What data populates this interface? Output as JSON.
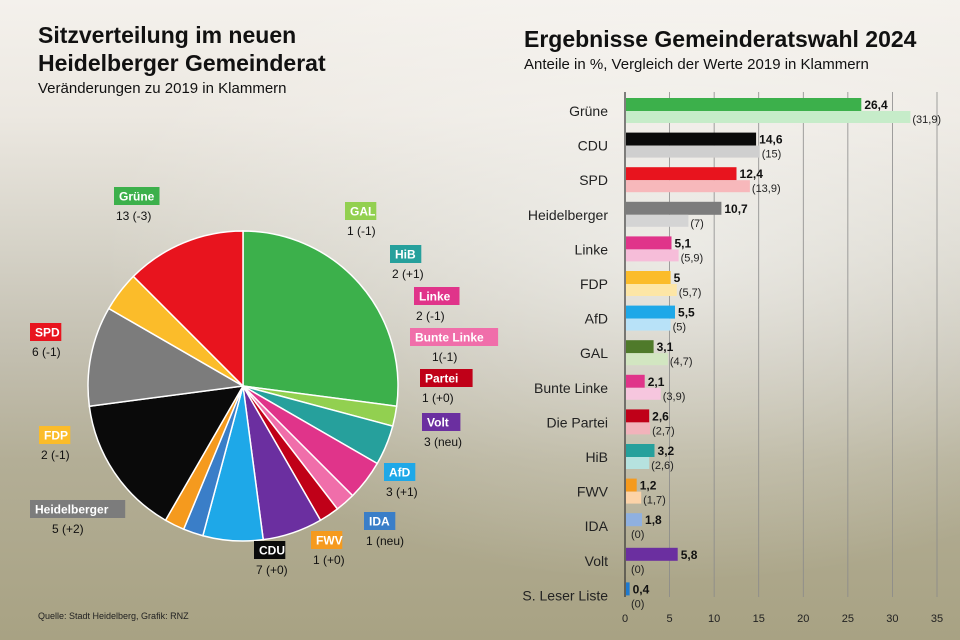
{
  "left_title_line1": "Sitzverteilung im neuen",
  "left_title_line2": "Heidelberger Gemeinderat",
  "left_subtitle": "Veränderungen zu 2019 in Klammern",
  "right_title": "Ergebnisse Gemeinderatswahl 2024",
  "right_subtitle": "Anteile in %, Vergleich der Werte 2019 in Klammern",
  "source": "Quelle: Stadt Heidelberg, Grafik: RNZ",
  "chart_data": [
    {
      "type": "pie",
      "title": "Sitzverteilung im neuen Heidelberger Gemeinderat",
      "subtitle": "Veränderungen zu 2019 in Klammern",
      "slices": [
        {
          "name": "Grüne",
          "value": 13,
          "change": "13 (-3)",
          "color": "#3cb04b"
        },
        {
          "name": "GAL",
          "value": 1,
          "change": "1 (-1)",
          "color": "#92d050"
        },
        {
          "name": "HiB",
          "value": 2,
          "change": "2 (+1)",
          "color": "#26a09c"
        },
        {
          "name": "Linke",
          "value": 2,
          "change": "2 (-1)",
          "color": "#e0348a"
        },
        {
          "name": "Bunte Linke",
          "value": 1,
          "change": "1(-1)",
          "color": "#f06eaa"
        },
        {
          "name": "Partei",
          "value": 1,
          "change": "1  (+0)",
          "color": "#c00018"
        },
        {
          "name": "Volt",
          "value": 3,
          "change": "3  (neu)",
          "color": "#6b2fa0"
        },
        {
          "name": "AfD",
          "value": 3,
          "change": "3 (+1)",
          "color": "#1ea8e8"
        },
        {
          "name": "IDA",
          "value": 1,
          "change": "1 (neu)",
          "color": "#3a7ec8"
        },
        {
          "name": "FWV",
          "value": 1,
          "change": "1 (+0)",
          "color": "#f59a1e"
        },
        {
          "name": "CDU",
          "value": 7,
          "change": "7 (+0)",
          "color": "#0a0a0a"
        },
        {
          "name": "Heidelberger",
          "value": 5,
          "change": "5 (+2)",
          "color": "#7c7c7c"
        },
        {
          "name": "FDP",
          "value": 2,
          "change": "2 (-1)",
          "color": "#fbbc2a"
        },
        {
          "name": "SPD",
          "value": 6,
          "change": "6 (-1)",
          "color": "#e8141e"
        }
      ]
    },
    {
      "type": "bar",
      "orientation": "horizontal",
      "title": "Ergebnisse Gemeinderatswahl 2024",
      "subtitle": "Anteile in %, Vergleich der Werte 2019 in Klammern",
      "xlim": [
        0,
        35
      ],
      "x_ticks": [
        0,
        5,
        10,
        15,
        20,
        25,
        30,
        35
      ],
      "grid": true,
      "categories": [
        "Grüne",
        "CDU",
        "SPD",
        "Heidelberger",
        "Linke",
        "FDP",
        "AfD",
        "GAL",
        "Bunte Linke",
        "Die Partei",
        "HiB",
        "FWV",
        "IDA",
        "Volt",
        "S. Leser Liste"
      ],
      "values_2024": [
        26.4,
        14.6,
        12.4,
        10.7,
        5.1,
        5,
        5.5,
        3.1,
        2.1,
        2.6,
        3.2,
        1.2,
        1.8,
        5.8,
        0.4
      ],
      "values_2019": [
        31.9,
        15,
        13.9,
        7,
        5.9,
        5.7,
        5,
        4.7,
        3.9,
        2.7,
        2.6,
        1.7,
        0,
        0,
        0
      ],
      "labels_2024": [
        "26,4",
        "14,6",
        "12,4",
        "10,7",
        "5,1",
        "5",
        "5,5",
        "3,1",
        "2,1",
        "2,6",
        "3,2",
        "1,2",
        "1,8",
        "5,8",
        "0,4"
      ],
      "labels_2019": [
        "(31,9)",
        "(15)",
        "(13,9)",
        "(7)",
        "(5,9)",
        "(5,7)",
        "(5)",
        "(4,7)",
        "(3,9)",
        "(2,7)",
        "(2,6)",
        "(1,7)",
        "(0)",
        "(0)",
        "(0)"
      ],
      "colors_2024": [
        "#3cb04b",
        "#0a0a0a",
        "#e8141e",
        "#7c7c7c",
        "#e0348a",
        "#fbbc2a",
        "#1ea8e8",
        "#4f7a2a",
        "#e0348a",
        "#c00018",
        "#26a09c",
        "#f59a1e",
        "#8fb0e0",
        "#6b2fa0",
        "#1e7ad0"
      ],
      "colors_2019": [
        "#c6ecc9",
        "#cfcfcf",
        "#f7b8bb",
        "#d4d4d4",
        "#f6bdd9",
        "#fde6a6",
        "#b8e2f8",
        "#d2e6c1",
        "#f6c6de",
        "#f2b3bb",
        "#b6e2df",
        "#fcd3a8",
        "#d4e2f4",
        "#e0d0ef",
        "#cfe2f6"
      ]
    }
  ]
}
